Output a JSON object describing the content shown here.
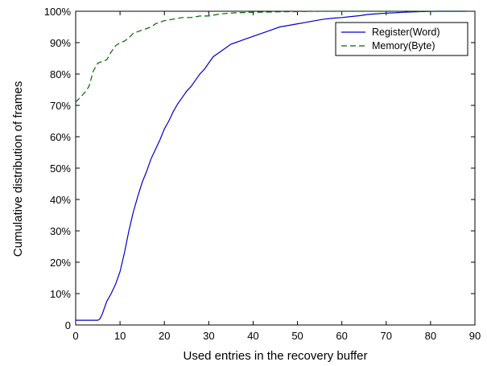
{
  "chart_data": {
    "type": "line",
    "title": "",
    "xlabel": "Used entries in the recovery buffer",
    "ylabel": "Cumulative distribution of frames",
    "xlim": [
      0,
      90
    ],
    "ylim": [
      0,
      100
    ],
    "xticks": [
      "0",
      "10",
      "20",
      "30",
      "40",
      "50",
      "60",
      "70",
      "80",
      "90"
    ],
    "yticks": [
      "0",
      "10%",
      "20%",
      "30%",
      "40%",
      "50%",
      "60%",
      "70%",
      "80%",
      "90%",
      "100%"
    ],
    "grid": false,
    "legend_position": "top-right",
    "series": [
      {
        "name": "Register(Word)",
        "color": "#0000cc",
        "style": "solid",
        "x": [
          0,
          5,
          5.5,
          6,
          6.5,
          7,
          8,
          9,
          10,
          11,
          12,
          13,
          14,
          15,
          16,
          17,
          18,
          19,
          20,
          21,
          22,
          23,
          24,
          25,
          26,
          27,
          28,
          29,
          30,
          31,
          32,
          33,
          34,
          35,
          36,
          37,
          38,
          40,
          42,
          44,
          46,
          48,
          50,
          52,
          54,
          56,
          58,
          60,
          62,
          64,
          66,
          68,
          70,
          72,
          74,
          76,
          78,
          80,
          82,
          84,
          86,
          88
        ],
        "y": [
          1.5,
          1.5,
          2,
          3.5,
          5.5,
          7.5,
          10,
          13,
          17,
          23,
          30,
          36,
          41,
          45.5,
          49,
          53,
          56,
          59,
          62.5,
          65,
          68,
          70.5,
          72.5,
          74.5,
          76,
          78,
          80,
          81.5,
          83.5,
          85.5,
          86.5,
          87.5,
          88.5,
          89.5,
          90,
          90.5,
          91,
          92,
          93,
          94,
          95,
          95.5,
          96,
          96.5,
          97,
          97.5,
          97.8,
          98,
          98.3,
          98.6,
          99,
          99.2,
          99.4,
          99.5,
          99.7,
          99.8,
          99.9,
          99.95,
          100,
          100,
          100,
          100
        ]
      },
      {
        "name": "Memory(Byte)",
        "color": "#006600",
        "style": "dashed",
        "x": [
          0,
          1,
          2,
          3,
          4,
          5,
          6,
          7,
          8,
          9,
          10,
          11,
          12,
          13,
          14,
          15,
          16,
          17,
          18,
          19,
          20,
          22,
          24,
          26,
          28,
          30,
          32,
          34,
          36,
          38,
          40,
          45,
          50,
          55,
          60,
          70,
          80,
          88
        ],
        "y": [
          71,
          72.5,
          74,
          76,
          81,
          83.5,
          84,
          84.5,
          87,
          89,
          90,
          90.5,
          91.5,
          93,
          93.5,
          94,
          94.5,
          95,
          96,
          96.5,
          97,
          97.5,
          98,
          98,
          98.5,
          98.5,
          99,
          99.3,
          99.5,
          99.6,
          99.7,
          99.8,
          99.9,
          100,
          100,
          100,
          100,
          100
        ]
      }
    ]
  }
}
